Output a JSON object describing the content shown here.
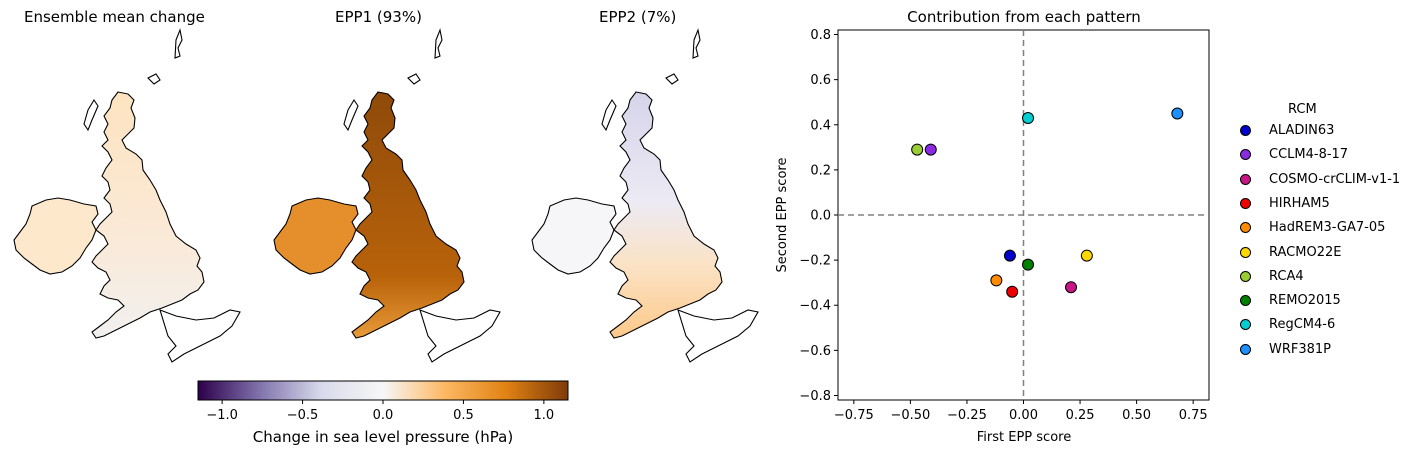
{
  "maps": [
    {
      "title": "Ensemble mean change",
      "fill": "#fde6c6",
      "south": "#f4f1ee",
      "ireland": "#fde8cc"
    },
    {
      "title": "EPP1 (93%)",
      "fill": "#b85e07",
      "south": "#e8962e",
      "ireland": "#e48f2c"
    },
    {
      "title": "EPP2 (7%)",
      "fill": "#dcdbed",
      "south": "#fdd7a6",
      "ireland": "#f6f5f8"
    }
  ],
  "colorbar": {
    "label": "Change in sea level pressure (hPa)",
    "ticks": [
      "−1.0",
      "−0.5",
      "0.0",
      "0.5",
      "1.0"
    ],
    "tick_values": [
      -1.0,
      -0.5,
      0.0,
      0.5,
      1.0
    ],
    "range": [
      -1.15,
      1.15
    ],
    "colors": [
      "#2d004b",
      "#8073ac",
      "#d8daeb",
      "#f7f7f7",
      "#fdb863",
      "#e08214",
      "#7f3b08"
    ]
  },
  "chart_data": {
    "type": "scatter",
    "title": "Contribution from each pattern",
    "xlabel": "First EPP score",
    "ylabel": "Second EPP score",
    "xlim": [
      -0.82,
      0.82
    ],
    "ylim": [
      -0.82,
      0.82
    ],
    "xticks": [
      -0.75,
      -0.5,
      -0.25,
      0.0,
      0.25,
      0.5,
      0.75
    ],
    "xtick_labels": [
      "−0.75",
      "−0.50",
      "−0.25",
      "0.00",
      "0.25",
      "0.50",
      "0.75"
    ],
    "yticks": [
      -0.8,
      -0.6,
      -0.4,
      -0.2,
      0.0,
      0.2,
      0.4,
      0.6,
      0.8
    ],
    "ytick_labels": [
      "−0.8",
      "−0.6",
      "−0.4",
      "−0.2",
      "0.0",
      "0.2",
      "0.4",
      "0.6",
      "0.8"
    ],
    "grid": false,
    "legend_title": "RCM",
    "legend_placement": "right",
    "series": [
      {
        "name": "ALADIN63",
        "color": "#0000cd",
        "x": -0.06,
        "y": -0.18
      },
      {
        "name": "CCLM4-8-17",
        "color": "#8a2be2",
        "x": -0.41,
        "y": 0.29
      },
      {
        "name": "COSMO-crCLIM-v1-1",
        "color": "#c71585",
        "x": 0.21,
        "y": -0.32
      },
      {
        "name": "HIRHAM5",
        "color": "#ee0000",
        "x": -0.05,
        "y": -0.34
      },
      {
        "name": "HadREM3-GA7-05",
        "color": "#ff8c00",
        "x": -0.12,
        "y": -0.29
      },
      {
        "name": "RACMO22E",
        "color": "#ffd700",
        "x": 0.28,
        "y": -0.18
      },
      {
        "name": "RCA4",
        "color": "#9acd32",
        "x": -0.47,
        "y": 0.29
      },
      {
        "name": "REMO2015",
        "color": "#008000",
        "x": 0.02,
        "y": -0.22
      },
      {
        "name": "RegCM4-6",
        "color": "#00ced1",
        "x": 0.02,
        "y": 0.43
      },
      {
        "name": "WRF381P",
        "color": "#1e90ff",
        "x": 0.68,
        "y": 0.45
      }
    ]
  }
}
